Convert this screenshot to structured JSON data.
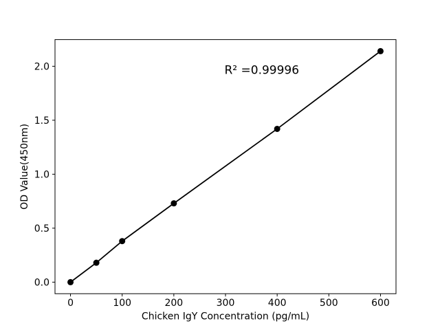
{
  "figure": {
    "background": "#ffffff"
  },
  "chart_data": {
    "type": "scatter",
    "title": "",
    "xlabel": "Chicken IgY Concentration (pg/mL)",
    "ylabel": "OD Value(450nm)",
    "x": [
      0,
      50,
      100,
      200,
      400,
      600
    ],
    "y": [
      0.0,
      0.18,
      0.38,
      0.73,
      1.42,
      2.14
    ],
    "line": true,
    "marker": "circle",
    "annotation": {
      "text": "R² =0.99996",
      "x": 298,
      "y": 1.93
    },
    "xticks": {
      "values": [
        0,
        100,
        200,
        300,
        400,
        500,
        600
      ],
      "labels": [
        "0",
        "100",
        "200",
        "300",
        "400",
        "500",
        "600"
      ]
    },
    "yticks": {
      "values": [
        0.0,
        0.5,
        1.0,
        1.5,
        2.0
      ],
      "labels": [
        "0.0",
        "0.5",
        "1.0",
        "1.5",
        "2.0"
      ]
    },
    "xlim": [
      -30,
      630
    ],
    "ylim": [
      -0.107,
      2.247
    ],
    "grid": false,
    "legend_position": "none",
    "colors": {
      "line": "#000000",
      "marker": "#000000",
      "spine": "#000000",
      "text": "#000000",
      "background": "#ffffff"
    }
  }
}
